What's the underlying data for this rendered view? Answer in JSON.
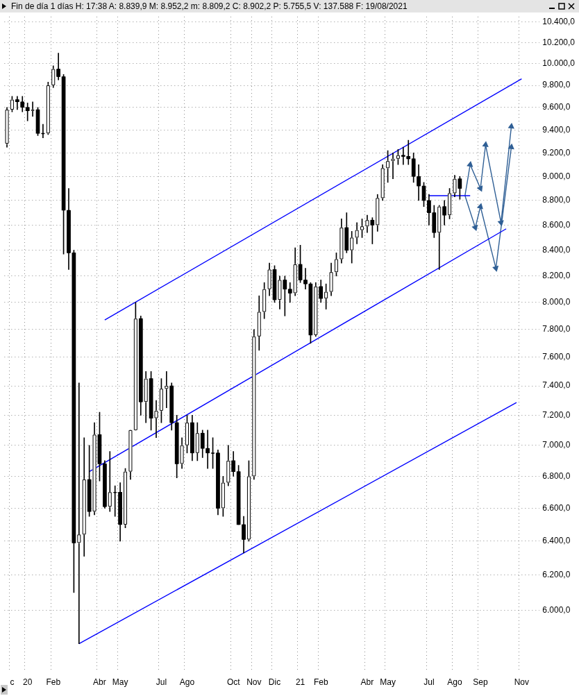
{
  "chart_data": {
    "type": "candlestick",
    "title": "Fin de día 1 días  H: 17:38  A: 8.839,9  M: 8.952,2  m: 8.809,2  C: 8.902,2  P: 5.755,5  V: 137.588  F: 19/08/2021",
    "categories": [
      null,
      "c",
      null,
      null,
      "20",
      null,
      null,
      null,
      null,
      "Feb",
      null,
      null,
      null,
      null,
      null,
      null,
      null,
      null,
      "Abr",
      null,
      null,
      null,
      "May",
      null,
      null,
      null,
      null,
      null,
      null,
      null,
      "Jul",
      null,
      null,
      null,
      null,
      "Ago",
      null,
      null,
      null,
      null,
      null,
      null,
      null,
      null,
      "Oct",
      null,
      null,
      null,
      "Nov",
      null,
      null,
      null,
      "Dic",
      null,
      null,
      null,
      null,
      "21",
      null,
      null,
      null,
      "Feb",
      null,
      null,
      null,
      null,
      null,
      null,
      null,
      null,
      "Abr",
      null,
      null,
      null,
      "May",
      null,
      null,
      null,
      null,
      null,
      null,
      null,
      "Jul",
      null,
      null,
      null,
      null,
      "Ago",
      null,
      null,
      null,
      null,
      "Sep",
      null,
      null,
      null,
      null,
      null,
      null,
      null,
      "Nov",
      null,
      null,
      null
    ],
    "color": "#000000",
    "colors": [
      "#ffffff",
      "#ffffff",
      "#000000",
      "#000000",
      "#000000",
      "#ffffff",
      "#000000",
      "#000000",
      "#ffffff",
      "#ffffff",
      "#000000",
      "#000000",
      "#000000",
      "#000000",
      "#ffffff",
      "#ffffff",
      "#000000",
      "#ffffff",
      "#000000",
      "#000000",
      "#ffffff",
      "#000000",
      "#000000",
      "#ffffff",
      "#ffffff",
      "#ffffff",
      "#000000",
      "#ffffff",
      "#000000",
      "#ffffff",
      "#ffffff",
      "#ffffff",
      "#000000",
      "#000000",
      "#ffffff",
      "#ffffff",
      "#000000",
      "#ffffff",
      "#000000",
      "#000000",
      "#000000",
      "#000000",
      "#ffffff",
      "#ffffff",
      "#000000",
      "#000000",
      "#000000",
      "#ffffff",
      "#ffffff",
      "#ffffff",
      "#ffffff",
      "#ffffff",
      "#000000",
      "#ffffff",
      "#000000",
      "#000000",
      "#ffffff",
      "#000000",
      "#000000",
      "#000000",
      "#ffffff",
      "#000000",
      "#ffffff",
      "#ffffff",
      "#ffffff",
      "#ffffff",
      "#000000",
      "#ffffff",
      "#ffffff",
      "#ffffff",
      "#ffffff",
      "#000000",
      "#ffffff",
      "#ffffff",
      "#ffffff",
      "#ffffff",
      "#ffffff",
      "#000000",
      "#000000",
      "#000000",
      "#000000",
      "#000000",
      "#000000",
      "#000000",
      "#ffffff",
      "#000000",
      "#ffffff",
      "#ffffff",
      "#000000",
      null,
      null,
      null,
      null,
      null,
      null,
      null,
      null,
      null,
      null,
      null,
      null,
      null,
      null,
      null
    ],
    "ohlc": [
      [
        9280,
        9600,
        9250,
        9580
      ],
      [
        9580,
        9700,
        9560,
        9670
      ],
      [
        9670,
        9700,
        9580,
        9650
      ],
      [
        9650,
        9700,
        9560,
        9600
      ],
      [
        9600,
        9640,
        9480,
        9570
      ],
      [
        9570,
        9650,
        9520,
        9580
      ],
      [
        9580,
        9600,
        9350,
        9370
      ],
      [
        9370,
        9450,
        9330,
        9370
      ],
      [
        9370,
        9830,
        9360,
        9800
      ],
      [
        9800,
        9980,
        9780,
        9950
      ],
      [
        9950,
        10100,
        9850,
        9880
      ],
      [
        9880,
        9900,
        8370,
        8720
      ],
      [
        8720,
        8900,
        8250,
        8380
      ],
      [
        8380,
        8400,
        6100,
        6390
      ],
      [
        6390,
        7420,
        5815,
        6440
      ],
      [
        6440,
        7050,
        6310,
        6780
      ],
      [
        6780,
        7000,
        6550,
        6580
      ],
      [
        6580,
        7150,
        6560,
        7070
      ],
      [
        7070,
        7220,
        6770,
        6880
      ],
      [
        6880,
        6900,
        6600,
        6610
      ],
      [
        6610,
        6960,
        6580,
        6700
      ],
      [
        6700,
        6740,
        6550,
        6700
      ],
      [
        6700,
        6760,
        6400,
        6500
      ],
      [
        6500,
        6850,
        6480,
        6830
      ],
      [
        6830,
        7100,
        6780,
        7100
      ],
      [
        7100,
        8000,
        7100,
        7880
      ],
      [
        7880,
        7900,
        7200,
        7290
      ],
      [
        7290,
        7500,
        7150,
        7450
      ],
      [
        7450,
        7500,
        7100,
        7180
      ],
      [
        7180,
        7300,
        7050,
        7230
      ],
      [
        7230,
        7450,
        7150,
        7380
      ],
      [
        7380,
        7500,
        7250,
        7400
      ],
      [
        7400,
        7420,
        7100,
        7150
      ],
      [
        7150,
        7200,
        6790,
        6880
      ],
      [
        6880,
        7050,
        6850,
        7000
      ],
      [
        7000,
        7200,
        6950,
        7150
      ],
      [
        7150,
        7200,
        6900,
        6950
      ],
      [
        6950,
        7150,
        6900,
        7080
      ],
      [
        7080,
        7100,
        6920,
        6980
      ],
      [
        6980,
        7100,
        6850,
        6950
      ],
      [
        6950,
        7050,
        6850,
        6950
      ],
      [
        6950,
        6970,
        6560,
        6600
      ],
      [
        6600,
        6800,
        6550,
        6760
      ],
      [
        6760,
        7000,
        6740,
        6900
      ],
      [
        6900,
        6960,
        6800,
        6830
      ],
      [
        6830,
        6870,
        6500,
        6500
      ],
      [
        6500,
        6550,
        6330,
        6410
      ],
      [
        6410,
        6900,
        6400,
        6800
      ],
      [
        6800,
        7800,
        6780,
        7750
      ],
      [
        7750,
        8050,
        7650,
        7930
      ],
      [
        7930,
        8150,
        7880,
        8100
      ],
      [
        8100,
        8300,
        8050,
        8250
      ],
      [
        8250,
        8280,
        8000,
        8020
      ],
      [
        8020,
        8200,
        7950,
        8170
      ],
      [
        8170,
        8200,
        7900,
        8100
      ],
      [
        8100,
        8150,
        8000,
        8070
      ],
      [
        8070,
        8420,
        8050,
        8290
      ],
      [
        8290,
        8440,
        8150,
        8170
      ],
      [
        8170,
        8260,
        8100,
        8140
      ],
      [
        8140,
        8150,
        7700,
        7760
      ],
      [
        7760,
        8150,
        7750,
        8120
      ],
      [
        8120,
        8170,
        8000,
        8030
      ],
      [
        8030,
        8140,
        7950,
        8080
      ],
      [
        8080,
        8300,
        8050,
        8230
      ],
      [
        8230,
        8380,
        8200,
        8330
      ],
      [
        8330,
        8650,
        8300,
        8580
      ],
      [
        8580,
        8700,
        8380,
        8400
      ],
      [
        8400,
        8550,
        8300,
        8500
      ],
      [
        8500,
        8620,
        8450,
        8560
      ],
      [
        8560,
        8650,
        8500,
        8590
      ],
      [
        8590,
        8680,
        8540,
        8640
      ],
      [
        8640,
        8660,
        8450,
        8600
      ],
      [
        8600,
        8850,
        8550,
        8820
      ],
      [
        8820,
        9100,
        8800,
        9070
      ],
      [
        9070,
        9220,
        8950,
        9130
      ],
      [
        9130,
        9200,
        8980,
        9150
      ],
      [
        9150,
        9230,
        9100,
        9180
      ],
      [
        9180,
        9250,
        9100,
        9170
      ],
      [
        9170,
        9310,
        9100,
        9150
      ],
      [
        9150,
        9200,
        8950,
        9000
      ],
      [
        9000,
        9100,
        8800,
        8920
      ],
      [
        8920,
        8950,
        8750,
        8800
      ],
      [
        8800,
        8850,
        8600,
        8700
      ],
      [
        8700,
        8760,
        8500,
        8540
      ],
      [
        8540,
        8760,
        8250,
        8750
      ],
      [
        8750,
        8800,
        8600,
        8680
      ],
      [
        8680,
        8900,
        8650,
        8860
      ],
      [
        8860,
        9010,
        8830,
        8980
      ],
      [
        8980,
        9000,
        8810,
        8900
      ],
      null,
      null,
      null,
      null,
      null,
      null,
      null,
      null,
      null,
      null,
      null,
      null,
      null,
      null,
      null
    ],
    "series": [
      {
        "type": "line",
        "color": "#0000ff",
        "values": [
          null,
          null,
          null,
          null,
          null,
          null,
          null,
          null,
          null,
          null,
          null,
          null,
          null,
          null,
          null,
          null,
          null,
          null,
          null,
          7870,
          null,
          null,
          null,
          null,
          null,
          null,
          null,
          null,
          null,
          null,
          null,
          null,
          null,
          null,
          null,
          null,
          null,
          null,
          null,
          null,
          null,
          null,
          null,
          null,
          null,
          null,
          null,
          null,
          null,
          null,
          null,
          null,
          null,
          null,
          null,
          null,
          null,
          null,
          null,
          null,
          null,
          null,
          null,
          null,
          null,
          null,
          null,
          null,
          null,
          null,
          null,
          null,
          null,
          null,
          null,
          null,
          null,
          null,
          null,
          null,
          null,
          null,
          null,
          null,
          null,
          null,
          null,
          null,
          null,
          null,
          null,
          null,
          null,
          null,
          null,
          null,
          null,
          null,
          null,
          null,
          9860,
          null,
          null,
          null
        ]
      },
      {
        "type": "line",
        "color": "#0000ff",
        "values": [
          null,
          null,
          null,
          null,
          null,
          null,
          null,
          null,
          null,
          null,
          null,
          null,
          null,
          null,
          null,
          null,
          6830,
          null,
          null,
          null,
          null,
          null,
          null,
          null,
          null,
          null,
          null,
          null,
          null,
          null,
          null,
          null,
          null,
          null,
          null,
          null,
          null,
          null,
          null,
          null,
          null,
          null,
          null,
          null,
          null,
          null,
          null,
          null,
          null,
          null,
          null,
          null,
          null,
          null,
          null,
          null,
          null,
          null,
          null,
          null,
          null,
          null,
          null,
          null,
          null,
          null,
          null,
          null,
          null,
          null,
          null,
          null,
          null,
          null,
          null,
          null,
          null,
          null,
          null,
          null,
          null,
          null,
          null,
          null,
          null,
          null,
          null,
          null,
          null,
          null,
          null,
          null,
          null,
          null,
          null,
          null,
          null,
          8570,
          null,
          null,
          null,
          null,
          null,
          null
        ]
      },
      {
        "type": "line",
        "color": "#0000ff",
        "values": [
          null,
          null,
          null,
          null,
          null,
          null,
          null,
          null,
          null,
          null,
          null,
          null,
          null,
          null,
          5815,
          null,
          null,
          null,
          null,
          null,
          null,
          null,
          null,
          null,
          null,
          null,
          null,
          null,
          null,
          null,
          null,
          null,
          null,
          null,
          null,
          null,
          null,
          null,
          null,
          null,
          null,
          null,
          null,
          null,
          null,
          null,
          null,
          null,
          null,
          null,
          null,
          null,
          null,
          null,
          null,
          null,
          null,
          null,
          null,
          null,
          null,
          null,
          null,
          null,
          null,
          null,
          null,
          null,
          null,
          null,
          null,
          null,
          null,
          null,
          null,
          null,
          null,
          null,
          null,
          null,
          null,
          null,
          null,
          null,
          null,
          null,
          null,
          null,
          null,
          null,
          null,
          null,
          null,
          null,
          null,
          null,
          null,
          null,
          null,
          7285,
          null,
          null,
          null,
          null
        ]
      },
      {
        "type": "line",
        "color": "#0000ff",
        "values": [
          null,
          null,
          null,
          null,
          null,
          null,
          null,
          null,
          null,
          null,
          null,
          null,
          null,
          null,
          null,
          null,
          null,
          null,
          null,
          null,
          null,
          null,
          null,
          null,
          null,
          null,
          null,
          null,
          null,
          null,
          null,
          null,
          null,
          null,
          null,
          null,
          null,
          null,
          null,
          null,
          null,
          null,
          null,
          null,
          null,
          null,
          null,
          null,
          null,
          null,
          null,
          null,
          null,
          null,
          null,
          null,
          null,
          null,
          null,
          null,
          null,
          null,
          null,
          null,
          null,
          null,
          null,
          null,
          null,
          null,
          null,
          null,
          null,
          null,
          null,
          null,
          null,
          null,
          null,
          null,
          null,
          null,
          8840,
          null,
          null,
          null,
          null,
          null,
          null,
          null,
          8840,
          null,
          null,
          null,
          null,
          null,
          null,
          null,
          null,
          null,
          null,
          null,
          null,
          null
        ]
      },
      {
        "type": "line",
        "color": "#2f5f95",
        "marker": "triangle",
        "values": [
          null,
          null,
          null,
          null,
          null,
          null,
          null,
          null,
          null,
          null,
          null,
          null,
          null,
          null,
          null,
          null,
          null,
          null,
          null,
          null,
          null,
          null,
          null,
          null,
          null,
          null,
          null,
          null,
          null,
          null,
          null,
          null,
          null,
          null,
          null,
          null,
          null,
          null,
          null,
          null,
          null,
          null,
          null,
          null,
          null,
          null,
          null,
          null,
          null,
          null,
          null,
          null,
          null,
          null,
          null,
          null,
          null,
          null,
          null,
          null,
          null,
          null,
          null,
          null,
          null,
          null,
          null,
          null,
          null,
          null,
          null,
          null,
          null,
          null,
          null,
          null,
          null,
          null,
          null,
          null,
          null,
          null,
          null,
          null,
          null,
          null,
          null,
          null,
          null,
          8840,
          9100,
          null,
          8900,
          9270,
          null,
          null,
          8620,
          null,
          9430,
          null,
          null,
          null,
          null,
          null
        ]
      },
      {
        "type": "line",
        "color": "#2f5f95",
        "marker": "triangle",
        "values": [
          null,
          null,
          null,
          null,
          null,
          null,
          null,
          null,
          null,
          null,
          null,
          null,
          null,
          null,
          null,
          null,
          null,
          null,
          null,
          null,
          null,
          null,
          null,
          null,
          null,
          null,
          null,
          null,
          null,
          null,
          null,
          null,
          null,
          null,
          null,
          null,
          null,
          null,
          null,
          null,
          null,
          null,
          null,
          null,
          null,
          null,
          null,
          null,
          null,
          null,
          null,
          null,
          null,
          null,
          null,
          null,
          null,
          null,
          null,
          null,
          null,
          null,
          null,
          null,
          null,
          null,
          null,
          null,
          null,
          null,
          null,
          null,
          null,
          null,
          null,
          null,
          null,
          null,
          null,
          null,
          null,
          null,
          null,
          null,
          null,
          null,
          null,
          null,
          null,
          8840,
          null,
          8580,
          8750,
          null,
          null,
          8260,
          null,
          null,
          9250,
          null,
          null,
          null,
          null,
          null
        ]
      }
    ],
    "log": true,
    "ylim": [
      5670,
      10450
    ],
    "yticks": [
      {
        "value": 6000,
        "label": "6.000,0"
      },
      {
        "value": 6200,
        "label": "6.200,0"
      },
      {
        "value": 6400,
        "label": "6.400,0"
      },
      {
        "value": 6600,
        "label": "6.600,0"
      },
      {
        "value": 6800,
        "label": "6.800,0"
      },
      {
        "value": 7000,
        "label": "7.000,0"
      },
      {
        "value": 7200,
        "label": "7.200,0"
      },
      {
        "value": 7400,
        "label": "7.400,0"
      },
      {
        "value": 7600,
        "label": "7.600,0"
      },
      {
        "value": 7800,
        "label": "7.800,0"
      },
      {
        "value": 8000,
        "label": "8.000,0"
      },
      {
        "value": 8200,
        "label": "8.200,0"
      },
      {
        "value": 8400,
        "label": "8.400,0"
      },
      {
        "value": 8600,
        "label": "8.600,0"
      },
      {
        "value": 8800,
        "label": "8.800,0"
      },
      {
        "value": 9000,
        "label": "9.000,0"
      },
      {
        "value": 9200,
        "label": "9.200,0"
      },
      {
        "value": 9400,
        "label": "9.400,0"
      },
      {
        "value": 9600,
        "label": "9.600,0"
      },
      {
        "value": 9800,
        "label": "9.800,0"
      },
      {
        "value": 10000,
        "label": "10.000,0"
      },
      {
        "value": 10200,
        "label": "10.200,0"
      },
      {
        "value": 10400,
        "label": "10.400,0"
      }
    ],
    "grid": true,
    "legend": false
  }
}
